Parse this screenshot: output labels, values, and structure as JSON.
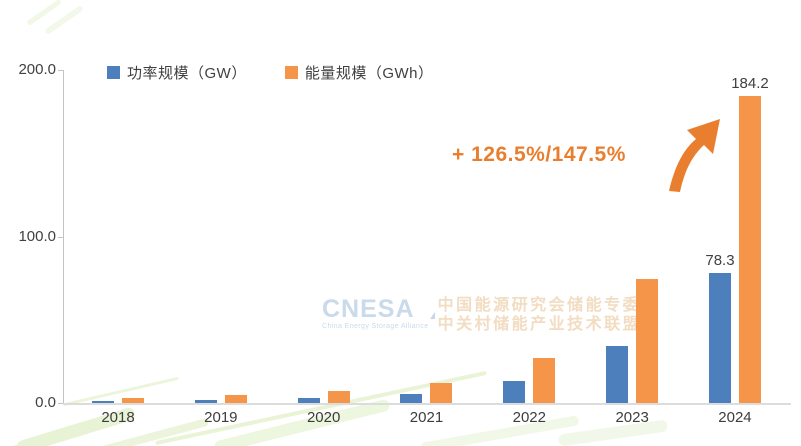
{
  "legend": {
    "items": [
      {
        "label": "功率规模（GW）",
        "color": "#4E7FBD"
      },
      {
        "label": "能量规模（GWh）",
        "color": "#F5954A"
      }
    ]
  },
  "annotation": {
    "text": "+ 126.5%/147.5%",
    "color": "#E87E2E"
  },
  "watermark": {
    "logo": "CNESA",
    "tagline": "China Energy Storage Alliance",
    "cn_line1": "中国能源研究会储能专委会",
    "cn_line2": "中关村储能产业技术联盟"
  },
  "chart_data": {
    "type": "bar",
    "categories": [
      "2018",
      "2019",
      "2020",
      "2021",
      "2022",
      "2023",
      "2024"
    ],
    "series": [
      {
        "name": "功率规模（GW）",
        "color": "#4E7FBD",
        "values": [
          1.0,
          1.7,
          3.3,
          5.7,
          13.1,
          34.5,
          78.3
        ]
      },
      {
        "name": "能量规模（GWh）",
        "color": "#F5954A",
        "values": [
          3.3,
          4.9,
          7.3,
          11.9,
          27.1,
          74.5,
          184.2
        ]
      }
    ],
    "data_labels": [
      {
        "category": "2024",
        "series": "功率规模（GW）",
        "text": "78.3"
      },
      {
        "category": "2024",
        "series": "能量规模（GWh）",
        "text": "184.2"
      }
    ],
    "title": "",
    "xlabel": "",
    "ylabel": "",
    "ylim": [
      0,
      200
    ],
    "yticks": [
      "200.0",
      "100.0",
      "0.0"
    ],
    "grid": false,
    "legend_position": "top"
  },
  "decoration": {
    "streak_color": "#E6F1D3"
  }
}
